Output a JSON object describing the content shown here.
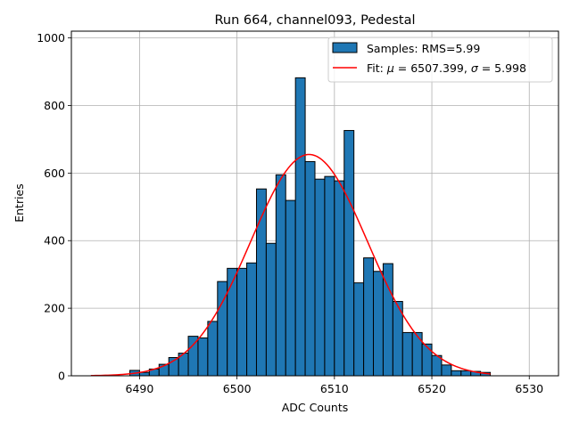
{
  "chart_data": {
    "type": "bar",
    "title": "Run 664, channel093, Pedestal",
    "xlabel": "ADC Counts",
    "ylabel": "Entries",
    "xlim": [
      6483,
      6533
    ],
    "ylim": [
      0,
      1020
    ],
    "xticks": [
      6490,
      6500,
      6510,
      6520,
      6530
    ],
    "yticks": [
      0,
      200,
      400,
      600,
      800,
      1000
    ],
    "grid": true,
    "legend_position": "top-right",
    "bin_width": 1,
    "bins_start": 6489,
    "values": [
      16,
      10,
      20,
      34,
      54,
      67,
      117,
      112,
      161,
      279,
      318,
      318,
      334,
      553,
      392,
      595,
      519,
      882,
      634,
      582,
      590,
      577,
      726,
      275,
      349,
      309,
      332,
      220,
      128,
      128,
      94,
      60,
      32,
      15,
      15,
      13,
      10
    ],
    "colors": {
      "bar_fill": "#1f77b4",
      "bar_edge": "#000000",
      "fit_line": "#ff0000",
      "grid": "#b0b0b0"
    },
    "series": [
      {
        "name": "Samples: RMS=5.99",
        "kind": "histogram"
      },
      {
        "name": "Fit:",
        "kind": "gaussian-fit",
        "mu": 6507.399,
        "sigma": 5.998,
        "amplitude": 655,
        "x_range": [
          6485,
          6526
        ]
      }
    ],
    "legend": {
      "samples_label": "Samples: RMS=5.99",
      "fit_prefix": "Fit: ",
      "mu_symbol": "μ",
      "mu_value": " = 6507.399, ",
      "sigma_symbol": "σ",
      "sigma_value": " = 5.998"
    }
  }
}
